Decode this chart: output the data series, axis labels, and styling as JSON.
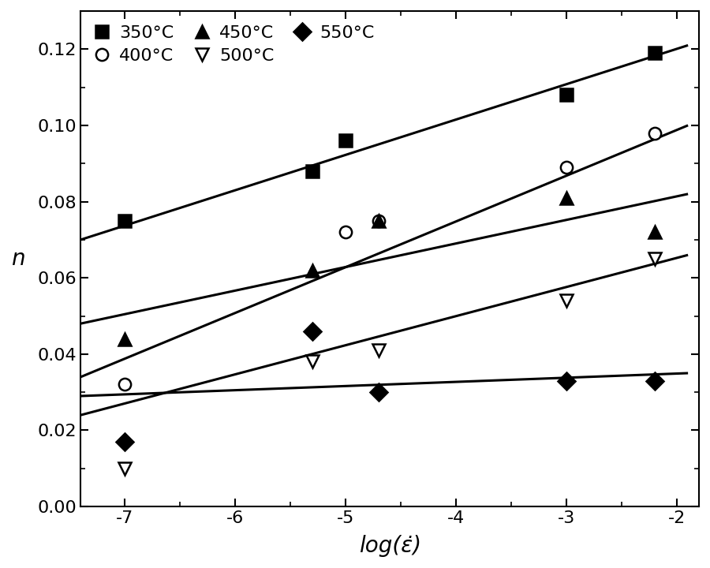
{
  "title": "",
  "xlabel": "log(ε̇)",
  "ylabel": "n",
  "xlim": [
    -7.4,
    -1.8
  ],
  "ylim": [
    0.0,
    0.13
  ],
  "xticks": [
    -7,
    -6,
    -5,
    -4,
    -3,
    -2
  ],
  "yticks": [
    0.0,
    0.02,
    0.04,
    0.06,
    0.08,
    0.1,
    0.12
  ],
  "series": [
    {
      "label": "350°C",
      "marker": "s",
      "fillstyle": "full",
      "scatter_x": [
        -7.0,
        -5.3,
        -5.0,
        -3.0,
        -2.2
      ],
      "scatter_y": [
        0.075,
        0.088,
        0.096,
        0.108,
        0.119
      ],
      "fit_x": [
        -7.4,
        -1.9
      ],
      "fit_y": [
        0.07,
        0.121
      ]
    },
    {
      "label": "400°C",
      "marker": "o",
      "fillstyle": "none",
      "scatter_x": [
        -7.0,
        -5.0,
        -4.7,
        -3.0,
        -2.2
      ],
      "scatter_y": [
        0.032,
        0.072,
        0.075,
        0.089,
        0.098
      ],
      "fit_x": [
        -7.4,
        -1.9
      ],
      "fit_y": [
        0.034,
        0.1
      ]
    },
    {
      "label": "450°C",
      "marker": "^",
      "fillstyle": "full",
      "scatter_x": [
        -7.0,
        -5.3,
        -4.7,
        -3.0,
        -2.2
      ],
      "scatter_y": [
        0.044,
        0.062,
        0.075,
        0.081,
        0.072
      ],
      "fit_x": [
        -7.4,
        -1.9
      ],
      "fit_y": [
        0.048,
        0.082
      ]
    },
    {
      "label": "500°C",
      "marker": "v",
      "fillstyle": "none",
      "scatter_x": [
        -7.0,
        -5.3,
        -4.7,
        -3.0,
        -2.2
      ],
      "scatter_y": [
        0.01,
        0.038,
        0.041,
        0.054,
        0.065
      ],
      "fit_x": [
        -7.4,
        -1.9
      ],
      "fit_y": [
        0.024,
        0.066
      ]
    },
    {
      "label": "550°C",
      "marker": "D",
      "fillstyle": "full",
      "scatter_x": [
        -7.0,
        -5.3,
        -4.7,
        -3.0,
        -2.2
      ],
      "scatter_y": [
        0.017,
        0.046,
        0.03,
        0.033,
        0.033
      ],
      "fit_x": [
        -7.4,
        -1.9
      ],
      "fit_y": [
        0.029,
        0.035
      ]
    }
  ],
  "background_color": "#ffffff",
  "marker_size": 11,
  "marker_edge_width": 1.8,
  "line_width": 2.2,
  "font_size": 18,
  "label_font_size": 20,
  "tick_font_size": 16,
  "legend_font_size": 16,
  "fig_width": 9.0,
  "fig_height": 7.2,
  "dpi": 100
}
